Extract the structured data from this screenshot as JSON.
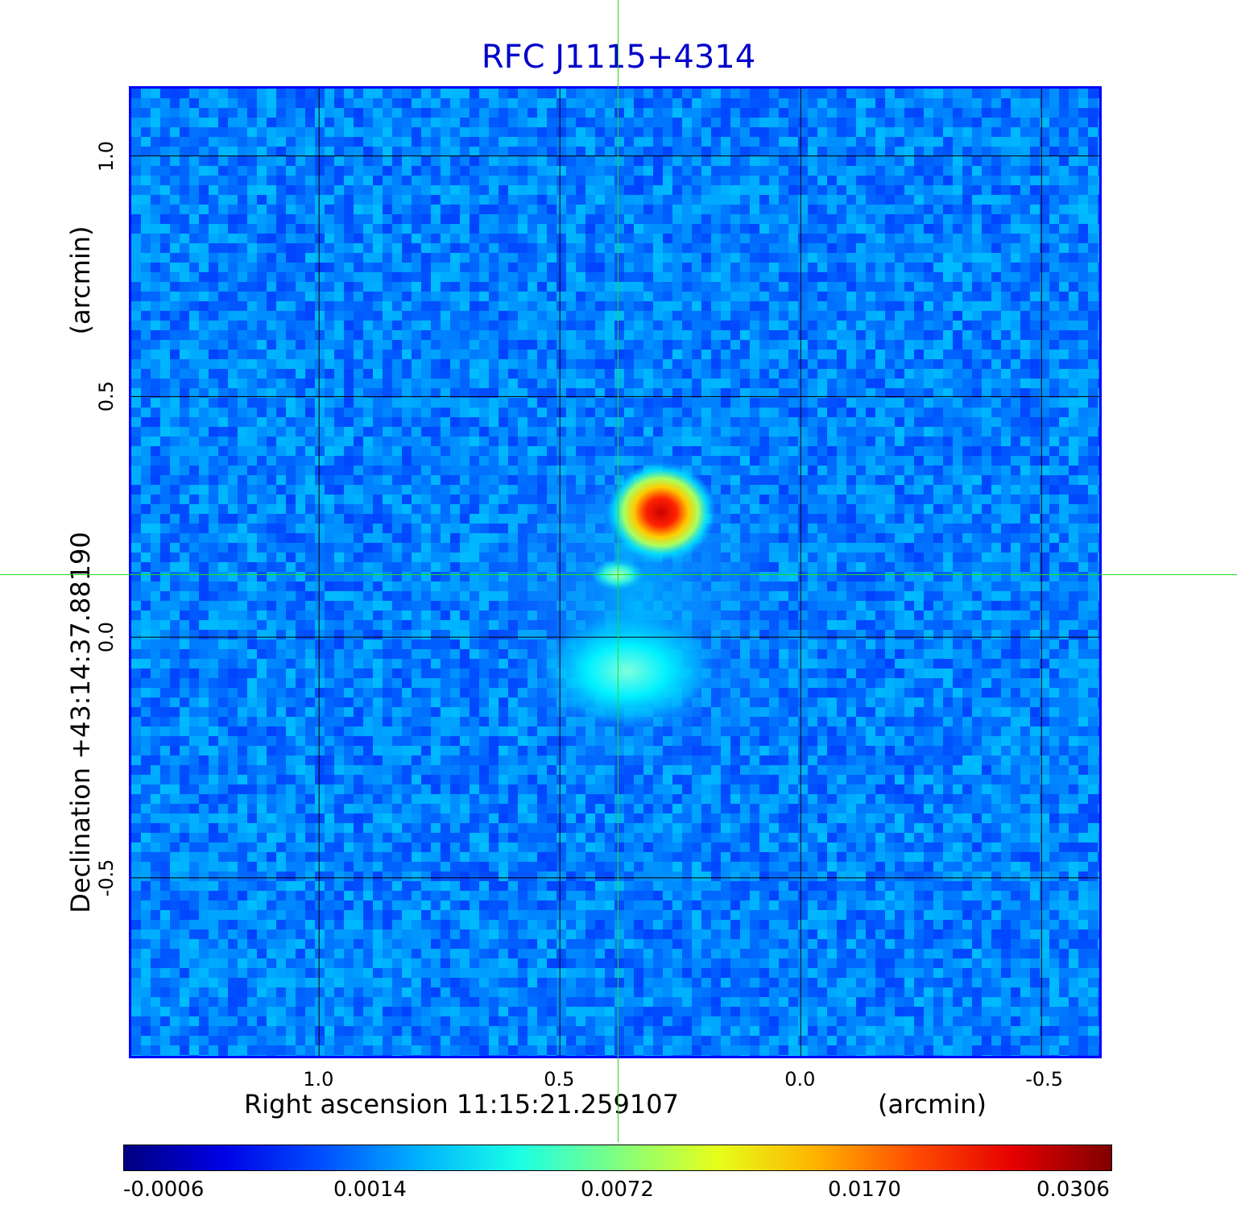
{
  "chart_data": {
    "type": "heatmap",
    "title": "RFC J1115+4314",
    "xlabel": "Right ascension  11:15:21.259107",
    "xlabel_unit": "(arcmin)",
    "ylabel": "Declination  +43:14:37.88190",
    "ylabel_unit": "(arcmin)",
    "x_ticks": [
      {
        "value": 1.0,
        "label": "1.0"
      },
      {
        "value": 0.5,
        "label": "0.5"
      },
      {
        "value": 0.0,
        "label": "0.0"
      },
      {
        "value": -0.5,
        "label": "-0.5"
      }
    ],
    "y_ticks": [
      {
        "value": 1.0,
        "label": "1.0"
      },
      {
        "value": 0.5,
        "label": "0.5"
      },
      {
        "value": 0.0,
        "label": "0.0"
      },
      {
        "value": -0.5,
        "label": "-0.5"
      }
    ],
    "xlim": [
      1.39,
      -0.62
    ],
    "ylim": [
      -0.87,
      1.14
    ],
    "grid": true,
    "colormap": "jet",
    "colorbar_labels": [
      "-0.0006",
      "0.0014",
      "0.0072",
      "0.0170",
      "0.0306"
    ],
    "colorbar_range": [
      -0.0006,
      0.0306
    ],
    "crosshair": {
      "x": 0.38,
      "y": 0.13
    },
    "features": [
      {
        "name": "peak",
        "x": 0.29,
        "y": 0.26,
        "value": 0.0306
      },
      {
        "name": "knot",
        "x": 0.38,
        "y": 0.13,
        "value": 0.006
      },
      {
        "name": "diffuse-lobe",
        "x": 0.36,
        "y": -0.07,
        "value": 0.004
      }
    ]
  },
  "colors": {
    "title": "#0000cc",
    "frame": "#0000ff",
    "grid": "#000000",
    "crosshair": "#22dd22"
  }
}
